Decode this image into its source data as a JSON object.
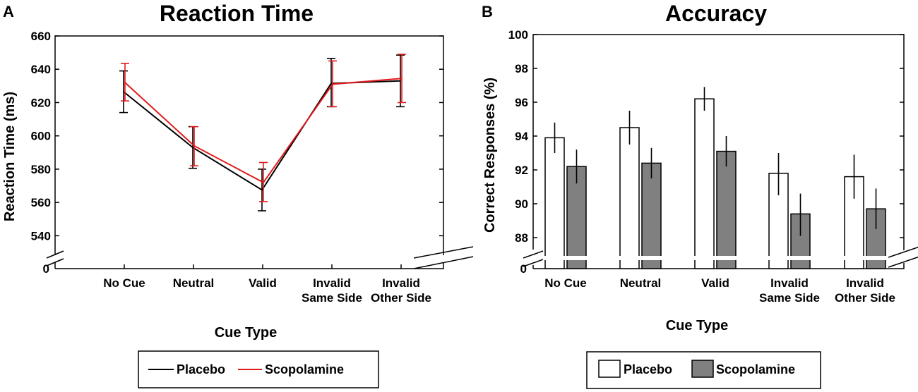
{
  "chart_data": [
    {
      "panel": "A",
      "type": "line",
      "title": "Reaction Time",
      "xlabel": "Cue Type",
      "ylabel": "Reaction Time (ms)",
      "ylim": [
        530,
        660
      ],
      "yticks": [
        "540",
        "560",
        "580",
        "600",
        "620",
        "640",
        "660"
      ],
      "ybreak_label": "0",
      "categories": [
        [
          "No Cue"
        ],
        [
          "Neutral"
        ],
        [
          "Valid"
        ],
        [
          "Invalid",
          "Same Side"
        ],
        [
          "Invalid",
          "Other Side"
        ]
      ],
      "series": [
        {
          "name": "Placebo",
          "color": "#000000",
          "values": [
            626.5,
            593,
            567.5,
            631.5,
            633
          ],
          "err_low": [
            614,
            580.5,
            555,
            617.5,
            617.5
          ],
          "err_high": [
            639,
            605.5,
            580,
            646.5,
            648.5
          ]
        },
        {
          "name": "Scopolamine",
          "color": "#e41a1c",
          "values": [
            632,
            594,
            572,
            631,
            634.5
          ],
          "err_low": [
            621,
            582,
            560.5,
            617.5,
            620
          ],
          "err_high": [
            643.5,
            605.5,
            584,
            645,
            649
          ]
        }
      ],
      "legend": "bottom"
    },
    {
      "panel": "B",
      "type": "bar",
      "title": "Accuracy",
      "xlabel": "Cue Type",
      "ylabel": "Correct Responses (%)",
      "ylim": [
        87.5,
        100
      ],
      "yticks": [
        "88",
        "90",
        "92",
        "94",
        "96",
        "98",
        "100"
      ],
      "ybreak_label": "0",
      "categories": [
        [
          "No Cue"
        ],
        [
          "Neutral"
        ],
        [
          "Valid"
        ],
        [
          "Invalid",
          "Same Side"
        ],
        [
          "Invalid",
          "Other Side"
        ]
      ],
      "series": [
        {
          "name": "Placebo",
          "color": "#ffffff",
          "values": [
            93.9,
            94.5,
            96.2,
            91.8,
            91.6
          ],
          "err_low": [
            93.0,
            93.5,
            95.5,
            90.5,
            90.3
          ],
          "err_high": [
            94.8,
            95.5,
            96.9,
            93.0,
            92.9
          ]
        },
        {
          "name": "Scopolamine",
          "color": "#808080",
          "values": [
            92.2,
            92.4,
            93.1,
            89.4,
            89.7
          ],
          "err_low": [
            91.2,
            91.5,
            92.2,
            88.1,
            88.5
          ],
          "err_high": [
            93.2,
            93.3,
            94.0,
            90.6,
            90.9
          ]
        }
      ],
      "legend": "bottom"
    }
  ]
}
